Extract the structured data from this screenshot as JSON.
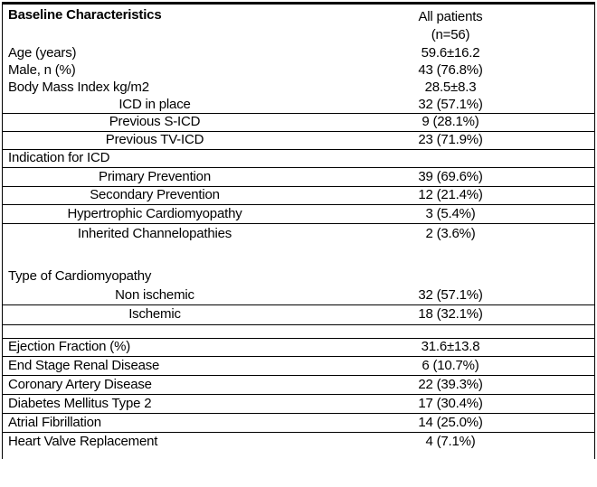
{
  "table": {
    "header": {
      "label": "Baseline Characteristics",
      "value_line1": "All patients",
      "value_line2": "(n=56)"
    },
    "rows": [
      {
        "label": "Age (years)",
        "value": "59.6±16.2"
      },
      {
        "label": "Male, n (%)",
        "value": "43 (76.8%)"
      },
      {
        "label": "Body Mass Index kg/m2",
        "value": "28.5±8.3"
      },
      {
        "label": "ICD in place",
        "value": "32 (57.1%)"
      },
      {
        "label": "Previous S-ICD",
        "value": "9 (28.1%)"
      },
      {
        "label": "Previous TV-ICD",
        "value": "23 (71.9%)"
      },
      {
        "label": "Indication for ICD",
        "value": ""
      },
      {
        "label": "Primary Prevention",
        "value": "39 (69.6%)"
      },
      {
        "label": "Secondary Prevention",
        "value": "12 (21.4%)"
      },
      {
        "label": "Hypertrophic Cardiomyopathy",
        "value": "3 (5.4%)"
      },
      {
        "label": "Inherited Channelopathies",
        "value": "2 (3.6%)"
      },
      {
        "label": "",
        "value": ""
      },
      {
        "label": "Type of Cardiomyopathy",
        "value": ""
      },
      {
        "label": "Non ischemic",
        "value": "32 (57.1%)"
      },
      {
        "label": "Ischemic",
        "value": "18 (32.1%)"
      },
      {
        "label": "",
        "value": ""
      },
      {
        "label": "Ejection Fraction (%)",
        "value": "31.6±13.8"
      },
      {
        "label": "End Stage Renal Disease",
        "value": "6 (10.7%)"
      },
      {
        "label": "Coronary Artery Disease",
        "value": "22 (39.3%)"
      },
      {
        "label": "Diabetes Mellitus Type 2",
        "value": "17 (30.4%)"
      },
      {
        "label": "Atrial Fibrillation",
        "value": "14 (25.0%)"
      },
      {
        "label": "Heart Valve Replacement",
        "value": "4 (7.1%)"
      }
    ]
  }
}
